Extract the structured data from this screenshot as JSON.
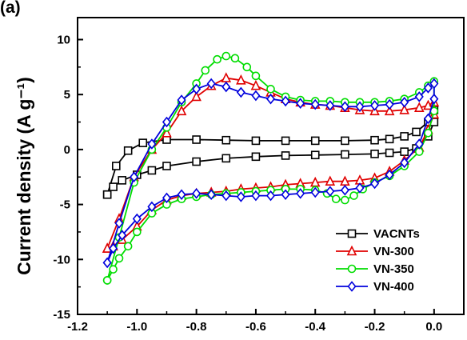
{
  "chart_data": {
    "type": "line",
    "panel_label": "(a)",
    "xlabel": "",
    "ylabel": "Current density (A g⁻¹)",
    "xlim": [
      -1.2,
      0.1
    ],
    "ylim": [
      -15,
      12
    ],
    "x_ticks": [
      -1.2,
      -1.0,
      -0.8,
      -0.6,
      -0.4,
      -0.2,
      0.0
    ],
    "x_tick_labels": [
      "-1.2",
      "-1.0",
      "-0.8",
      "-0.6",
      "-0.4",
      "-0.2",
      "0.0"
    ],
    "y_ticks": [
      -15,
      -10,
      -5,
      0,
      5,
      10
    ],
    "y_tick_labels": [
      "-15",
      "-10",
      "-5",
      "0",
      "5",
      "10"
    ],
    "grid": false,
    "legend_position": "bottom-right",
    "series": [
      {
        "name": "VACNTs",
        "color": "#000000",
        "marker": "square",
        "x": [
          -1.1,
          -1.07,
          -1.03,
          -0.98,
          -0.9,
          -0.8,
          -0.7,
          -0.6,
          -0.5,
          -0.4,
          -0.3,
          -0.2,
          -0.15,
          -0.1,
          -0.06,
          -0.02,
          0.0,
          0.0,
          -0.02,
          -0.06,
          -0.1,
          -0.15,
          -0.2,
          -0.3,
          -0.4,
          -0.5,
          -0.6,
          -0.7,
          -0.8,
          -0.9,
          -0.95,
          -1.0,
          -1.05,
          -1.08,
          -1.1
        ],
        "y": [
          -4.1,
          -1.5,
          -0.1,
          0.6,
          0.9,
          0.9,
          0.85,
          0.8,
          0.8,
          0.8,
          0.8,
          0.85,
          0.95,
          1.2,
          1.6,
          2.5,
          3.6,
          2.5,
          1.2,
          0.1,
          -0.2,
          -0.3,
          -0.4,
          -0.45,
          -0.5,
          -0.55,
          -0.65,
          -0.8,
          -1.1,
          -1.5,
          -1.9,
          -2.3,
          -2.8,
          -3.4,
          -4.1
        ]
      },
      {
        "name": "VN-300",
        "color": "#e00000",
        "marker": "triangle",
        "x": [
          -1.1,
          -1.06,
          -1.01,
          -0.95,
          -0.9,
          -0.85,
          -0.8,
          -0.75,
          -0.7,
          -0.65,
          -0.6,
          -0.55,
          -0.5,
          -0.45,
          -0.4,
          -0.35,
          -0.3,
          -0.25,
          -0.2,
          -0.15,
          -0.1,
          -0.05,
          -0.02,
          0.0,
          0.0,
          -0.02,
          -0.05,
          -0.1,
          -0.15,
          -0.2,
          -0.25,
          -0.3,
          -0.35,
          -0.4,
          -0.45,
          -0.5,
          -0.55,
          -0.6,
          -0.65,
          -0.7,
          -0.75,
          -0.8,
          -0.85,
          -0.9,
          -0.95,
          -1.0,
          -1.05,
          -1.08,
          -1.1
        ],
        "y": [
          -9.0,
          -6.3,
          -2.5,
          0.0,
          1.5,
          3.5,
          4.8,
          5.8,
          6.5,
          6.3,
          5.8,
          5.2,
          4.6,
          4.3,
          4.1,
          4.0,
          3.8,
          3.6,
          3.5,
          3.5,
          3.6,
          3.8,
          4.0,
          4.3,
          3.2,
          1.8,
          0.2,
          -1.0,
          -2.0,
          -2.6,
          -2.8,
          -2.9,
          -2.9,
          -3.0,
          -3.1,
          -3.2,
          -3.4,
          -3.5,
          -3.6,
          -3.8,
          -3.9,
          -4.0,
          -4.2,
          -4.6,
          -5.5,
          -7.0,
          -8.2,
          -8.8,
          -9.0
        ]
      },
      {
        "name": "VN-350",
        "color": "#00dd00",
        "marker": "circle",
        "x": [
          -1.1,
          -1.06,
          -1.01,
          -0.95,
          -0.9,
          -0.85,
          -0.8,
          -0.77,
          -0.73,
          -0.7,
          -0.67,
          -0.63,
          -0.6,
          -0.55,
          -0.5,
          -0.45,
          -0.4,
          -0.35,
          -0.3,
          -0.25,
          -0.2,
          -0.15,
          -0.1,
          -0.05,
          -0.02,
          0.0,
          0.0,
          -0.02,
          -0.05,
          -0.1,
          -0.15,
          -0.2,
          -0.24,
          -0.27,
          -0.3,
          -0.33,
          -0.36,
          -0.4,
          -0.45,
          -0.5,
          -0.55,
          -0.6,
          -0.65,
          -0.7,
          -0.75,
          -0.8,
          -0.85,
          -0.9,
          -0.95,
          -1.0,
          -1.03,
          -1.06,
          -1.08,
          -1.1
        ],
        "y": [
          -11.9,
          -8.0,
          -3.0,
          0.0,
          2.0,
          4.3,
          6.0,
          7.2,
          8.2,
          8.5,
          8.3,
          7.5,
          6.7,
          5.5,
          4.8,
          4.5,
          4.4,
          4.4,
          4.3,
          4.3,
          4.3,
          4.4,
          4.6,
          5.2,
          5.8,
          6.2,
          3.5,
          1.5,
          -0.2,
          -1.5,
          -2.4,
          -3.0,
          -3.6,
          -4.2,
          -4.6,
          -4.5,
          -4.0,
          -3.7,
          -3.6,
          -3.6,
          -3.7,
          -3.8,
          -3.9,
          -4.0,
          -4.1,
          -4.3,
          -4.5,
          -5.0,
          -5.8,
          -7.5,
          -8.8,
          -9.9,
          -10.9,
          -11.9
        ]
      },
      {
        "name": "VN-400",
        "color": "#0000dd",
        "marker": "diamond",
        "x": [
          -1.1,
          -1.06,
          -1.01,
          -0.95,
          -0.9,
          -0.85,
          -0.8,
          -0.75,
          -0.7,
          -0.65,
          -0.6,
          -0.55,
          -0.5,
          -0.45,
          -0.4,
          -0.35,
          -0.3,
          -0.25,
          -0.2,
          -0.15,
          -0.1,
          -0.05,
          -0.02,
          0.0,
          0.0,
          -0.02,
          -0.05,
          -0.1,
          -0.15,
          -0.2,
          -0.25,
          -0.3,
          -0.35,
          -0.4,
          -0.45,
          -0.5,
          -0.55,
          -0.6,
          -0.65,
          -0.7,
          -0.75,
          -0.8,
          -0.85,
          -0.9,
          -0.95,
          -1.0,
          -1.05,
          -1.08,
          -1.1
        ],
        "y": [
          -10.3,
          -6.7,
          -2.5,
          0.5,
          2.5,
          4.5,
          5.5,
          6.0,
          5.7,
          5.2,
          4.9,
          4.6,
          4.4,
          4.2,
          4.1,
          4.0,
          3.9,
          3.9,
          4.0,
          4.1,
          4.3,
          4.8,
          5.6,
          6.0,
          4.6,
          2.8,
          0.5,
          -1.2,
          -2.3,
          -3.1,
          -3.5,
          -3.7,
          -3.8,
          -3.9,
          -4.0,
          -4.1,
          -4.2,
          -4.2,
          -4.3,
          -4.2,
          -4.1,
          -4.0,
          -4.1,
          -4.4,
          -5.2,
          -6.3,
          -7.8,
          -9.0,
          -10.3
        ]
      }
    ]
  }
}
